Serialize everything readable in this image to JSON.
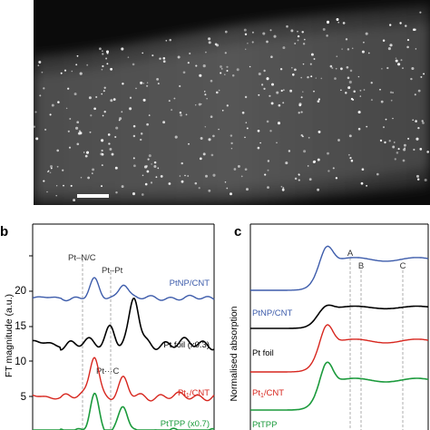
{
  "panel_labels": {
    "b": "b",
    "c": "c"
  },
  "colors": {
    "ptnp_cnt": "#3d5cab",
    "pt_foil": "#000000",
    "pt1_cnt": "#d7261e",
    "pttpp": "#1b9a3c",
    "guide": "#9a9a9a"
  },
  "panel_b": {
    "ylabel": "FT magnitude (a.u.)",
    "yticks": [
      "20",
      "15",
      "10",
      "5"
    ],
    "peak_labels": [
      "Pt–N/C",
      "Pt–Pt",
      "Pt···C"
    ],
    "series_labels": [
      "PtNP/CNT",
      "Pt foil (x0.3)",
      "Pt",
      "1",
      "/CNT",
      "PtTPP (x0.7)"
    ]
  },
  "panel_c": {
    "ylabel": "Normalised absorption",
    "feature_labels": [
      "A",
      "B",
      "C"
    ],
    "series_labels": [
      "PtNP/CNT",
      "Pt foil",
      "Pt",
      "1",
      "/CNT",
      "PtTPP"
    ]
  },
  "chart_data": [
    {
      "type": "line",
      "panel": "b",
      "ylabel": "FT magnitude (a.u.)",
      "yticks": [
        20,
        15,
        10,
        5
      ],
      "series": [
        {
          "name": "PtNP/CNT",
          "baseline": 19,
          "peaks": [
            [
              0.34,
              2.5
            ],
            [
              0.5,
              2.2
            ]
          ]
        },
        {
          "name": "Pt foil (x0.3)",
          "baseline": 12.5,
          "peaks": [
            [
              0.43,
              2.5
            ],
            [
              0.56,
              6.5
            ]
          ]
        },
        {
          "name": "Pt1/CNT",
          "baseline": 5,
          "peaks": [
            [
              0.34,
              6
            ],
            [
              0.5,
              2.3
            ]
          ]
        },
        {
          "name": "PtTPP (x0.7)",
          "baseline": 0,
          "peaks": [
            [
              0.34,
              5.5
            ],
            [
              0.5,
              3.5
            ]
          ]
        }
      ]
    },
    {
      "type": "line",
      "panel": "c",
      "ylabel": "Normalised absorption",
      "series": [
        {
          "name": "PtNP/CNT"
        },
        {
          "name": "Pt foil"
        },
        {
          "name": "Pt1/CNT"
        },
        {
          "name": "PtTPP"
        }
      ]
    }
  ]
}
